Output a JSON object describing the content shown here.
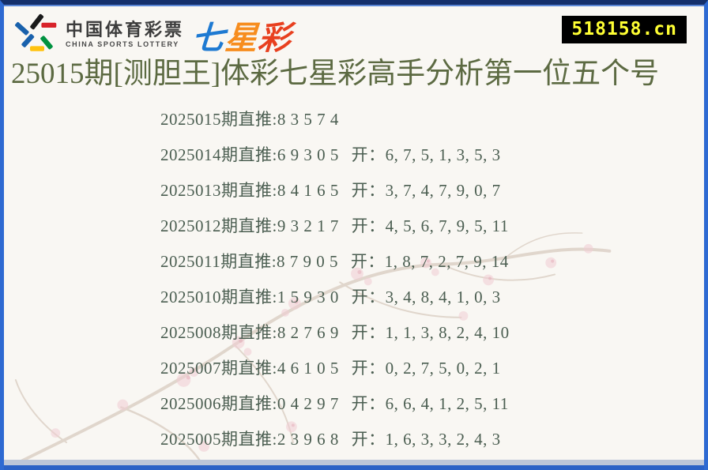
{
  "page": {
    "title": "25015期[测胆王]体彩七星彩高手分析第一位五个号",
    "site_badge": "518158.cn"
  },
  "logo": {
    "cn_name": "中国体育彩票",
    "en_name": "CHINA SPORTS LOTTERY",
    "brand": [
      {
        "char": "七",
        "color": "#1e7ad2"
      },
      {
        "char": "星",
        "color": "#f78d1e"
      },
      {
        "char": "彩",
        "color": "#e8401f"
      }
    ]
  },
  "labels": {
    "zhitui_label": "期直推:",
    "open_label": "开："
  },
  "rows": [
    {
      "period": "2025015",
      "zhitui": "8 3 5 7 4",
      "open": ""
    },
    {
      "period": "2025014",
      "zhitui": "6 9 3 0 5",
      "open": "6, 7, 5, 1, 3, 5, 3"
    },
    {
      "period": "2025013",
      "zhitui": "8 4 1 6 5",
      "open": "3, 7, 4, 7, 9, 0, 7"
    },
    {
      "period": "2025012",
      "zhitui": "9 3 2 1 7",
      "open": "4, 5, 6, 7, 9, 5, 11"
    },
    {
      "period": "2025011",
      "zhitui": "8 7 9 0 5",
      "open": "1, 8, 7, 2, 7, 9, 14"
    },
    {
      "period": "2025010",
      "zhitui": "1 5 9 3 0",
      "open": "3, 4, 8, 4, 1, 0, 3"
    },
    {
      "period": "2025008",
      "zhitui": "8 2 7 6 9",
      "open": "1, 1, 3, 8, 2, 4, 10"
    },
    {
      "period": "2025007",
      "zhitui": "4 6 1 0 5",
      "open": "0, 2, 7, 5, 0, 2, 1"
    },
    {
      "period": "2025006",
      "zhitui": "0 4 2 9 7",
      "open": "6, 6, 4, 1, 2, 5, 11"
    },
    {
      "period": "2025005",
      "zhitui": "2 3 9 6 8",
      "open": "1, 6, 3, 3, 2, 4, 3"
    }
  ],
  "colors": {
    "badge_bg": "#000000",
    "badge_text": "#ffff33",
    "title_text": "#5c6a42",
    "row_text": "#4b5e51",
    "border_blue": "#2e6ad2",
    "border_navy": "#142f6b"
  }
}
